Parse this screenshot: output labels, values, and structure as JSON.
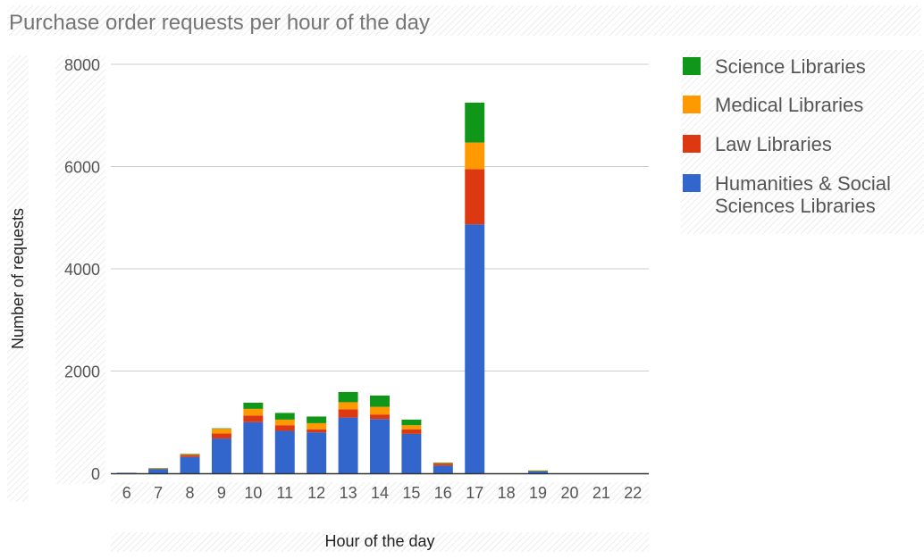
{
  "chart_data": {
    "type": "bar",
    "stacked": true,
    "title": "Purchase order requests per hour of the day",
    "xlabel": "Hour of the day",
    "ylabel": "Number of requests",
    "categories": [
      "6",
      "7",
      "8",
      "9",
      "10",
      "11",
      "12",
      "13",
      "14",
      "15",
      "16",
      "17",
      "18",
      "19",
      "20",
      "21",
      "22"
    ],
    "ylim": [
      0,
      8000
    ],
    "yticks": [
      0,
      2000,
      4000,
      6000,
      8000
    ],
    "grid": true,
    "legend_position": "right",
    "series": [
      {
        "name": "Humanities & Social Sciences Libraries",
        "color": "#3366cc",
        "values": [
          10,
          80,
          320,
          680,
          1000,
          830,
          800,
          1090,
          1060,
          770,
          150,
          4870,
          0,
          40,
          0,
          0,
          0
        ]
      },
      {
        "name": "Law Libraries",
        "color": "#dc3912",
        "values": [
          0,
          10,
          40,
          100,
          130,
          110,
          60,
          160,
          90,
          90,
          40,
          1080,
          0,
          5,
          0,
          0,
          0
        ]
      },
      {
        "name": "Medical Libraries",
        "color": "#ff9900",
        "values": [
          0,
          5,
          10,
          90,
          130,
          110,
          120,
          140,
          150,
          80,
          10,
          520,
          0,
          5,
          0,
          0,
          0
        ]
      },
      {
        "name": "Science Libraries",
        "color": "#109618",
        "values": [
          0,
          5,
          10,
          10,
          120,
          130,
          130,
          200,
          220,
          110,
          10,
          780,
          0,
          5,
          0,
          0,
          0
        ]
      }
    ],
    "legend_order": [
      3,
      2,
      1,
      0
    ]
  }
}
